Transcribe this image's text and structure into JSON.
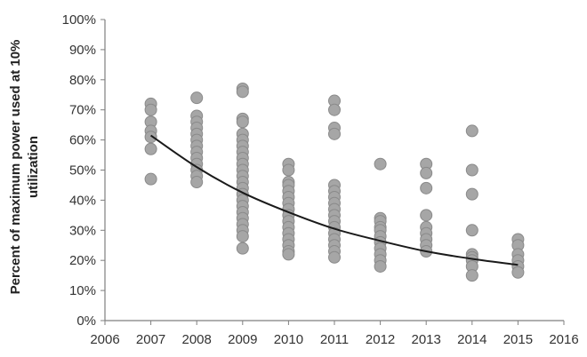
{
  "chart_data": {
    "type": "scatter",
    "title": "",
    "xlabel": "",
    "ylabel": "Percent of maximum power used at 10% utilization",
    "ylabel_lines": [
      "Percent of maximum power used at 10%",
      "utilization"
    ],
    "xlim": [
      2006,
      2016
    ],
    "ylim": [
      0,
      100
    ],
    "x_ticks": [
      2006,
      2007,
      2008,
      2009,
      2010,
      2011,
      2012,
      2013,
      2014,
      2015,
      2016
    ],
    "x_tick_labels": [
      "2006",
      "2007",
      "2008",
      "2009",
      "2010",
      "2011",
      "2012",
      "2013",
      "2014",
      "2015",
      "2016"
    ],
    "y_ticks": [
      0,
      10,
      20,
      30,
      40,
      50,
      60,
      70,
      80,
      90,
      100
    ],
    "y_tick_labels": [
      "0%",
      "10%",
      "20%",
      "30%",
      "40%",
      "50%",
      "60%",
      "70%",
      "80%",
      "90%",
      "100%"
    ],
    "grid": false,
    "legend": "none",
    "colors": {
      "marker_fill": "#a6a6a6",
      "marker_stroke": "#8a8a8a",
      "trend": "#1a1a1a",
      "axis": "#7f7f7f"
    },
    "series": [
      {
        "type": "scatter",
        "points": [
          {
            "x": 2007,
            "y": 72
          },
          {
            "x": 2007,
            "y": 70
          },
          {
            "x": 2007,
            "y": 66
          },
          {
            "x": 2007,
            "y": 63
          },
          {
            "x": 2007,
            "y": 61
          },
          {
            "x": 2007,
            "y": 57
          },
          {
            "x": 2007,
            "y": 47
          },
          {
            "x": 2008,
            "y": 74
          },
          {
            "x": 2008,
            "y": 68
          },
          {
            "x": 2008,
            "y": 66
          },
          {
            "x": 2008,
            "y": 64
          },
          {
            "x": 2008,
            "y": 62
          },
          {
            "x": 2008,
            "y": 60
          },
          {
            "x": 2008,
            "y": 58
          },
          {
            "x": 2008,
            "y": 56
          },
          {
            "x": 2008,
            "y": 54
          },
          {
            "x": 2008,
            "y": 52
          },
          {
            "x": 2008,
            "y": 50
          },
          {
            "x": 2008,
            "y": 48
          },
          {
            "x": 2008,
            "y": 46
          },
          {
            "x": 2009,
            "y": 77
          },
          {
            "x": 2009,
            "y": 76
          },
          {
            "x": 2009,
            "y": 67
          },
          {
            "x": 2009,
            "y": 66
          },
          {
            "x": 2009,
            "y": 62
          },
          {
            "x": 2009,
            "y": 60
          },
          {
            "x": 2009,
            "y": 58
          },
          {
            "x": 2009,
            "y": 56
          },
          {
            "x": 2009,
            "y": 54
          },
          {
            "x": 2009,
            "y": 52
          },
          {
            "x": 2009,
            "y": 50
          },
          {
            "x": 2009,
            "y": 48
          },
          {
            "x": 2009,
            "y": 46
          },
          {
            "x": 2009,
            "y": 44
          },
          {
            "x": 2009,
            "y": 42
          },
          {
            "x": 2009,
            "y": 40
          },
          {
            "x": 2009,
            "y": 38
          },
          {
            "x": 2009,
            "y": 36
          },
          {
            "x": 2009,
            "y": 34
          },
          {
            "x": 2009,
            "y": 32
          },
          {
            "x": 2009,
            "y": 30
          },
          {
            "x": 2009,
            "y": 28
          },
          {
            "x": 2009,
            "y": 24
          },
          {
            "x": 2010,
            "y": 52
          },
          {
            "x": 2010,
            "y": 50
          },
          {
            "x": 2010,
            "y": 46
          },
          {
            "x": 2010,
            "y": 45
          },
          {
            "x": 2010,
            "y": 43
          },
          {
            "x": 2010,
            "y": 41
          },
          {
            "x": 2010,
            "y": 39
          },
          {
            "x": 2010,
            "y": 37
          },
          {
            "x": 2010,
            "y": 35
          },
          {
            "x": 2010,
            "y": 33
          },
          {
            "x": 2010,
            "y": 31
          },
          {
            "x": 2010,
            "y": 29
          },
          {
            "x": 2010,
            "y": 27
          },
          {
            "x": 2010,
            "y": 25
          },
          {
            "x": 2010,
            "y": 23
          },
          {
            "x": 2010,
            "y": 22
          },
          {
            "x": 2011,
            "y": 73
          },
          {
            "x": 2011,
            "y": 70
          },
          {
            "x": 2011,
            "y": 64
          },
          {
            "x": 2011,
            "y": 62
          },
          {
            "x": 2011,
            "y": 45
          },
          {
            "x": 2011,
            "y": 43
          },
          {
            "x": 2011,
            "y": 41
          },
          {
            "x": 2011,
            "y": 39
          },
          {
            "x": 2011,
            "y": 37
          },
          {
            "x": 2011,
            "y": 35
          },
          {
            "x": 2011,
            "y": 33
          },
          {
            "x": 2011,
            "y": 31
          },
          {
            "x": 2011,
            "y": 29
          },
          {
            "x": 2011,
            "y": 27
          },
          {
            "x": 2011,
            "y": 25
          },
          {
            "x": 2011,
            "y": 23
          },
          {
            "x": 2011,
            "y": 21
          },
          {
            "x": 2012,
            "y": 52
          },
          {
            "x": 2012,
            "y": 34
          },
          {
            "x": 2012,
            "y": 33
          },
          {
            "x": 2012,
            "y": 31
          },
          {
            "x": 2012,
            "y": 30
          },
          {
            "x": 2012,
            "y": 28
          },
          {
            "x": 2012,
            "y": 26
          },
          {
            "x": 2012,
            "y": 24
          },
          {
            "x": 2012,
            "y": 22
          },
          {
            "x": 2012,
            "y": 20
          },
          {
            "x": 2012,
            "y": 18
          },
          {
            "x": 2013,
            "y": 52
          },
          {
            "x": 2013,
            "y": 49
          },
          {
            "x": 2013,
            "y": 44
          },
          {
            "x": 2013,
            "y": 35
          },
          {
            "x": 2013,
            "y": 31
          },
          {
            "x": 2013,
            "y": 29
          },
          {
            "x": 2013,
            "y": 27
          },
          {
            "x": 2013,
            "y": 25
          },
          {
            "x": 2013,
            "y": 23
          },
          {
            "x": 2014,
            "y": 63
          },
          {
            "x": 2014,
            "y": 50
          },
          {
            "x": 2014,
            "y": 42
          },
          {
            "x": 2014,
            "y": 30
          },
          {
            "x": 2014,
            "y": 22
          },
          {
            "x": 2014,
            "y": 21
          },
          {
            "x": 2014,
            "y": 20
          },
          {
            "x": 2014,
            "y": 18
          },
          {
            "x": 2014,
            "y": 15
          },
          {
            "x": 2015,
            "y": 27
          },
          {
            "x": 2015,
            "y": 25
          },
          {
            "x": 2015,
            "y": 22
          },
          {
            "x": 2015,
            "y": 20
          },
          {
            "x": 2015,
            "y": 18
          },
          {
            "x": 2015,
            "y": 16
          }
        ]
      },
      {
        "type": "line",
        "x": [
          2007,
          2008,
          2009,
          2010,
          2011,
          2012,
          2013,
          2014,
          2015
        ],
        "y": [
          61.5,
          51,
          42.5,
          36,
          30.5,
          26.5,
          23,
          20.5,
          18.5
        ]
      }
    ]
  }
}
